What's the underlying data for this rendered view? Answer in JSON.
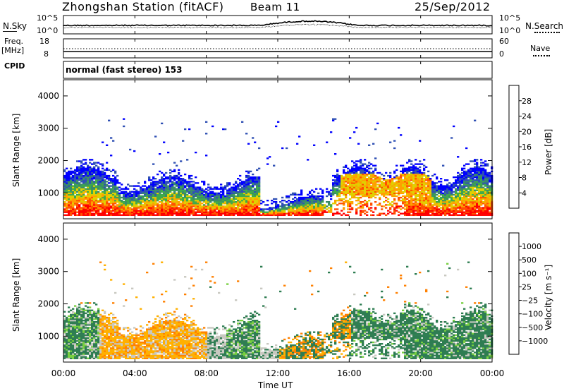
{
  "header": {
    "station": "Zhongshan Station (fitACF)",
    "beam": "Beam 11",
    "date": "25/Sep/2012"
  },
  "panels": {
    "nsky": {
      "left_label": "N.Sky",
      "right_label": "N.Search",
      "left_top": "10^5",
      "left_bottom": "10^0",
      "right_top": "10^5",
      "right_bottom": "10^0"
    },
    "freq": {
      "left_label_top": "Freq.",
      "left_label_bottom": "[MHz]",
      "left_top": "18",
      "left_bottom": "8",
      "right_label": "Nave",
      "right_top": "60",
      "right_bottom": "0"
    },
    "cpid": {
      "label": "CPID",
      "text": "normal (fast stereo) 153"
    }
  },
  "colors": {
    "power_scale": [
      "#0000ff",
      "#2f50b4",
      "#3a8a6a",
      "#3faa4a",
      "#e0d000",
      "#ffa000",
      "#ff5000",
      "#ff0000"
    ],
    "velocity_scale": [
      "#1010c0",
      "#3050a0",
      "#2e7d52",
      "#3da060",
      "#78d040",
      "#c8c8c0",
      "#ffb000",
      "#ff8000",
      "#ff5000",
      "#ff0000"
    ]
  },
  "chart_data": [
    {
      "type": "heatmap",
      "name": "power",
      "ylabel": "Slant Range [km]",
      "yticks": [
        "4000",
        "3000",
        "2000",
        "1000"
      ],
      "ylim": [
        200,
        4500
      ],
      "xlim_hours": [
        0,
        24
      ],
      "colorbar": {
        "label": "Power [dB]",
        "ticks": [
          "28",
          "24",
          "20",
          "16",
          "12",
          "8",
          "4"
        ],
        "range": [
          0,
          32
        ]
      }
    },
    {
      "type": "heatmap",
      "name": "velocity",
      "ylabel": "Slant Range [km]",
      "yticks": [
        "4000",
        "3000",
        "2000",
        "1000"
      ],
      "ylim": [
        200,
        4500
      ],
      "xlim_hours": [
        0,
        24
      ],
      "colorbar": {
        "label": "Velocity [m s⁻¹]",
        "ticks": [
          "1000",
          "500",
          "100",
          "25",
          "−25",
          "−100",
          "−500",
          "−1000"
        ]
      }
    }
  ],
  "xaxis": {
    "label": "Time UT",
    "ticks": [
      "00:00",
      "04:00",
      "08:00",
      "12:00",
      "16:00",
      "20:00",
      "00:00"
    ]
  }
}
